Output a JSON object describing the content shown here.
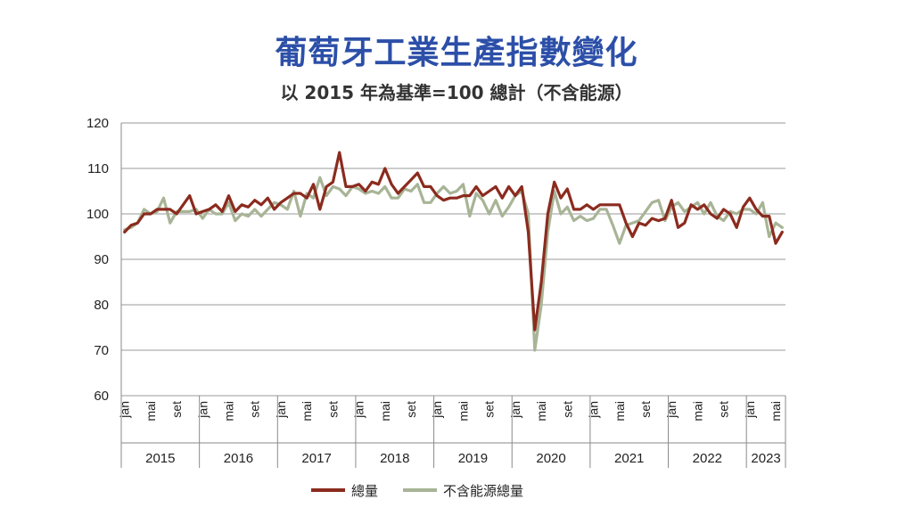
{
  "chart_data": {
    "type": "line",
    "title": "葡萄牙工業生產指數變化",
    "subtitle": "以 2015 年為基準=100 總計（不含能源）",
    "ylim": [
      60,
      120
    ],
    "yticks": [
      60,
      70,
      80,
      90,
      100,
      110,
      120
    ],
    "grid": true,
    "legend_position": "bottom",
    "x_month_labels": [
      "jan",
      "mai",
      "set"
    ],
    "x_year_labels": [
      "2015",
      "2016",
      "2017",
      "2018",
      "2019",
      "2020",
      "2021",
      "2022",
      "2023"
    ],
    "months_per_year": [
      12,
      12,
      12,
      12,
      12,
      12,
      12,
      12,
      6
    ],
    "series": [
      {
        "name": "總量",
        "color": "#8b2b1e",
        "values": [
          96,
          97.5,
          98,
          100,
          100,
          101,
          101,
          101,
          100,
          102,
          104,
          100,
          100.5,
          101,
          102,
          100.5,
          104,
          100.5,
          102,
          101.5,
          103,
          102,
          103.5,
          101,
          102.5,
          103.5,
          104.5,
          104.5,
          103.5,
          106.5,
          101,
          106,
          107,
          113.5,
          106,
          106,
          106.5,
          105,
          107,
          106.5,
          110,
          106.5,
          104.5,
          106,
          107.5,
          109,
          106,
          106,
          104,
          103,
          103.5,
          103.5,
          104,
          104,
          106,
          104,
          105,
          106,
          103.5,
          106,
          104,
          106,
          96,
          74.5,
          85,
          100,
          107,
          103.5,
          105.5,
          101,
          101,
          102,
          101,
          102,
          102,
          102,
          102,
          98,
          95,
          98,
          97.5,
          99,
          98.5,
          99,
          103,
          97,
          98,
          102,
          101,
          102,
          100,
          99,
          101,
          100,
          97,
          101.5,
          103.5,
          101,
          99.5,
          99.5,
          93.5,
          96
        ]
      },
      {
        "name": "不含能源總量",
        "color": "#a8b496",
        "values": [
          96.5,
          97,
          98,
          101,
          100,
          100.5,
          103.5,
          98,
          100.5,
          100.5,
          100.5,
          101,
          99,
          101,
          100,
          100,
          102.5,
          98.5,
          100,
          99.5,
          101,
          99.5,
          101,
          102.5,
          102,
          101,
          105,
          99.5,
          104.5,
          103.5,
          108,
          104,
          106,
          105.5,
          104,
          106,
          105.5,
          104.5,
          105,
          104.5,
          106,
          103.5,
          103.5,
          105.5,
          105,
          106.5,
          102.5,
          102.5,
          104.5,
          106,
          104.5,
          105,
          106.5,
          99.5,
          104.5,
          103,
          100,
          103,
          99.5,
          101.5,
          104,
          105,
          100,
          70,
          80,
          96,
          105,
          100,
          101.5,
          98.5,
          99.5,
          98.5,
          99,
          101,
          101,
          97.5,
          93.5,
          97.5,
          98,
          98.5,
          100.5,
          102.5,
          103,
          98.5,
          101.5,
          102.5,
          100.5,
          101.5,
          102.5,
          100,
          102.5,
          99.5,
          98.5,
          100.5,
          100,
          101,
          101,
          100,
          102.5,
          95,
          98,
          97
        ]
      }
    ]
  }
}
